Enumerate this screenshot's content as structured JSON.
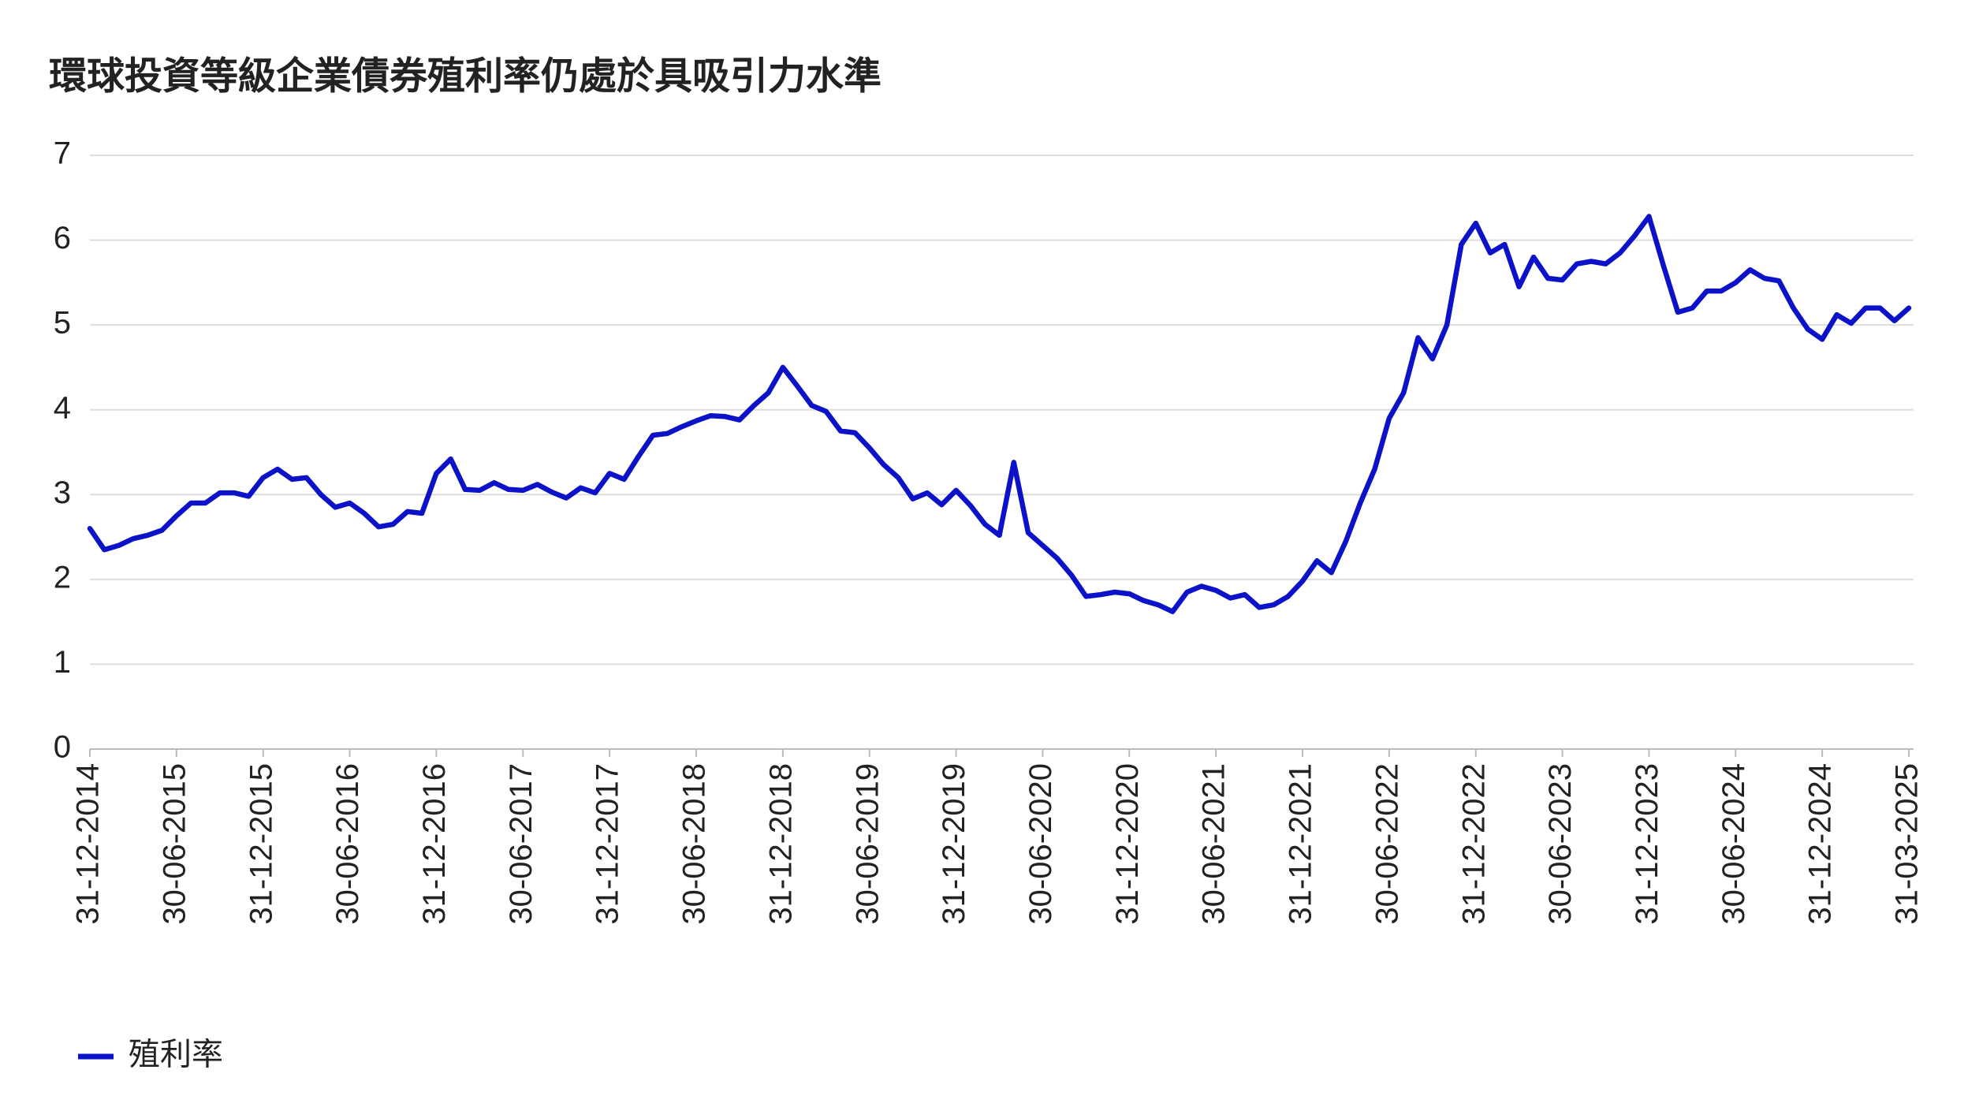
{
  "chart_data": {
    "type": "line",
    "title": "環球投資等級企業債券殖利率仍處於具吸引力水準",
    "categories": [
      "31-12-2014",
      null,
      null,
      null,
      null,
      null,
      "30-06-2015",
      null,
      null,
      null,
      null,
      null,
      "31-12-2015",
      null,
      null,
      null,
      null,
      null,
      "30-06-2016",
      null,
      null,
      null,
      null,
      null,
      "31-12-2016",
      null,
      null,
      null,
      null,
      null,
      "30-06-2017",
      null,
      null,
      null,
      null,
      null,
      "31-12-2017",
      null,
      null,
      null,
      null,
      null,
      "30-06-2018",
      null,
      null,
      null,
      null,
      null,
      "31-12-2018",
      null,
      null,
      null,
      null,
      null,
      "30-06-2019",
      null,
      null,
      null,
      null,
      null,
      "31-12-2019",
      null,
      null,
      null,
      null,
      null,
      "30-06-2020",
      null,
      null,
      null,
      null,
      null,
      "31-12-2020",
      null,
      null,
      null,
      null,
      null,
      "30-06-2021",
      null,
      null,
      null,
      null,
      null,
      "31-12-2021",
      null,
      null,
      null,
      null,
      null,
      "30-06-2022",
      null,
      null,
      null,
      null,
      null,
      "31-12-2022",
      null,
      null,
      null,
      null,
      null,
      "30-06-2023",
      null,
      null,
      null,
      null,
      null,
      "31-12-2023",
      null,
      null,
      null,
      null,
      null,
      "30-06-2024",
      null,
      null,
      null,
      null,
      null,
      "31-12-2024",
      null,
      null,
      null,
      null,
      null,
      "31-03-2025"
    ],
    "series": [
      {
        "name": "殖利率",
        "color": "#0c12c8",
        "values": [
          2.6,
          2.35,
          2.4,
          2.48,
          2.52,
          2.58,
          2.75,
          2.9,
          2.9,
          3.02,
          3.02,
          2.98,
          3.2,
          3.3,
          3.18,
          3.2,
          3.0,
          2.85,
          2.9,
          2.78,
          2.62,
          2.65,
          2.8,
          2.78,
          3.25,
          3.42,
          3.06,
          3.05,
          3.14,
          3.06,
          3.05,
          3.12,
          3.03,
          2.96,
          3.08,
          3.02,
          3.25,
          3.18,
          3.45,
          3.7,
          3.72,
          3.8,
          3.87,
          3.93,
          3.92,
          3.88,
          4.05,
          4.2,
          4.5,
          4.28,
          4.05,
          3.98,
          3.75,
          3.73,
          3.55,
          3.35,
          3.2,
          2.95,
          3.02,
          2.88,
          3.05,
          2.87,
          2.65,
          2.52,
          3.38,
          2.55,
          2.4,
          2.25,
          2.05,
          1.8,
          1.82,
          1.85,
          1.83,
          1.75,
          1.7,
          1.62,
          1.85,
          1.92,
          1.87,
          1.78,
          1.82,
          1.67,
          1.7,
          1.8,
          1.98,
          2.22,
          2.08,
          2.45,
          2.9,
          3.3,
          3.9,
          4.2,
          4.85,
          4.6,
          5.0,
          5.95,
          6.2,
          5.85,
          5.95,
          5.45,
          5.8,
          5.55,
          5.53,
          5.72,
          5.75,
          5.72,
          5.85,
          6.05,
          6.28,
          5.7,
          5.15,
          5.2,
          5.4,
          5.4,
          5.5,
          5.65,
          5.55,
          5.52,
          5.2,
          4.95,
          4.83,
          5.12,
          5.02,
          5.2,
          5.2,
          5.05,
          5.2
        ]
      }
    ],
    "ylim": [
      0,
      7
    ],
    "yticks": [
      0,
      1,
      2,
      3,
      4,
      5,
      6,
      7
    ],
    "grid": true
  }
}
